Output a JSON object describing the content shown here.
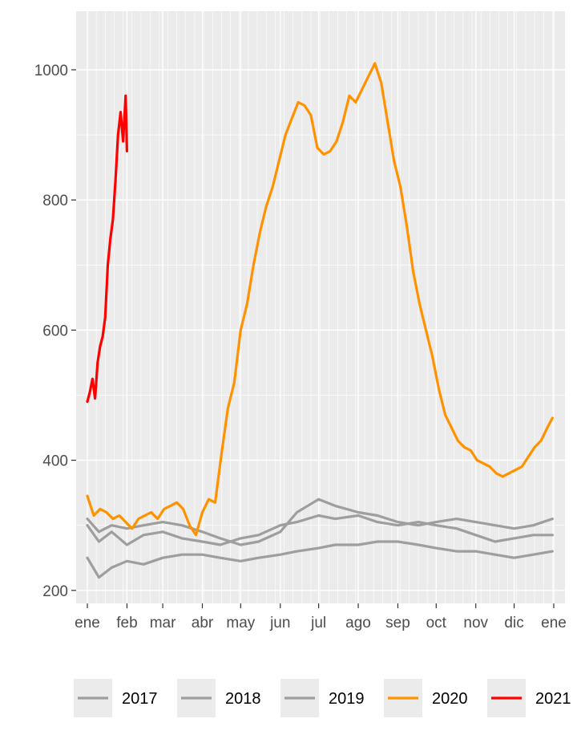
{
  "chart_data": {
    "type": "line",
    "title": "",
    "xlabel": "",
    "ylabel": "",
    "ylim": [
      180,
      1090
    ],
    "y_ticks": [
      200,
      400,
      600,
      800,
      1000
    ],
    "x_ticks": [
      {
        "label": "ene",
        "doy": 1
      },
      {
        "label": "feb",
        "doy": 32
      },
      {
        "label": "mar",
        "doy": 60
      },
      {
        "label": "abr",
        "doy": 91
      },
      {
        "label": "may",
        "doy": 121
      },
      {
        "label": "jun",
        "doy": 152
      },
      {
        "label": "jul",
        "doy": 182
      },
      {
        "label": "ago",
        "doy": 213
      },
      {
        "label": "sep",
        "doy": 244
      },
      {
        "label": "oct",
        "doy": 274
      },
      {
        "label": "nov",
        "doy": 305
      },
      {
        "label": "dic",
        "doy": 335
      },
      {
        "label": "ene",
        "doy": 366
      }
    ],
    "grid": true,
    "legend_position": "bottom",
    "series": [
      {
        "name": "2017",
        "color": "#9e9e9e",
        "x": [
          1,
          10,
          20,
          32,
          45,
          60,
          75,
          91,
          105,
          121,
          135,
          152,
          165,
          182,
          195,
          213,
          228,
          244,
          260,
          274,
          290,
          305,
          320,
          335,
          350,
          365
        ],
        "y": [
          300,
          275,
          290,
          270,
          285,
          290,
          280,
          275,
          270,
          280,
          285,
          300,
          305,
          315,
          310,
          315,
          305,
          300,
          305,
          300,
          295,
          285,
          275,
          280,
          285,
          285
        ]
      },
      {
        "name": "2018",
        "color": "#9e9e9e",
        "x": [
          1,
          10,
          20,
          32,
          45,
          60,
          75,
          91,
          105,
          121,
          135,
          152,
          165,
          182,
          195,
          213,
          228,
          244,
          260,
          274,
          290,
          305,
          320,
          335,
          350,
          365
        ],
        "y": [
          250,
          220,
          235,
          245,
          240,
          250,
          255,
          255,
          250,
          245,
          250,
          255,
          260,
          265,
          270,
          270,
          275,
          275,
          270,
          265,
          260,
          260,
          255,
          250,
          255,
          260
        ]
      },
      {
        "name": "2019",
        "color": "#9e9e9e",
        "x": [
          1,
          10,
          20,
          32,
          45,
          60,
          75,
          91,
          105,
          121,
          135,
          152,
          165,
          182,
          195,
          213,
          228,
          244,
          260,
          274,
          290,
          305,
          320,
          335,
          350,
          365
        ],
        "y": [
          310,
          290,
          300,
          295,
          300,
          305,
          300,
          290,
          280,
          270,
          275,
          290,
          320,
          340,
          330,
          320,
          315,
          305,
          300,
          305,
          310,
          305,
          300,
          295,
          300,
          310
        ]
      },
      {
        "name": "2020",
        "color": "#ff9200",
        "x": [
          1,
          6,
          11,
          16,
          21,
          26,
          31,
          36,
          41,
          46,
          51,
          56,
          61,
          66,
          71,
          76,
          81,
          86,
          91,
          96,
          101,
          106,
          111,
          116,
          121,
          126,
          131,
          136,
          141,
          146,
          151,
          156,
          161,
          166,
          171,
          176,
          181,
          186,
          191,
          196,
          201,
          206,
          211,
          216,
          221,
          226,
          231,
          236,
          241,
          246,
          251,
          256,
          261,
          266,
          271,
          276,
          281,
          286,
          291,
          296,
          301,
          306,
          311,
          316,
          321,
          326,
          331,
          336,
          341,
          346,
          351,
          356,
          361,
          365
        ],
        "y": [
          345,
          315,
          325,
          320,
          310,
          315,
          305,
          295,
          310,
          315,
          320,
          310,
          325,
          330,
          335,
          325,
          300,
          285,
          320,
          340,
          335,
          410,
          480,
          520,
          600,
          640,
          700,
          750,
          790,
          820,
          860,
          900,
          925,
          950,
          945,
          930,
          880,
          870,
          875,
          890,
          920,
          960,
          950,
          970,
          990,
          1010,
          980,
          920,
          860,
          820,
          760,
          690,
          640,
          600,
          560,
          510,
          470,
          450,
          430,
          420,
          415,
          400,
          395,
          390,
          380,
          375,
          380,
          385,
          390,
          405,
          420,
          430,
          450,
          465
        ]
      },
      {
        "name": "2021",
        "color": "#ff0000",
        "x": [
          1,
          3,
          5,
          7,
          9,
          11,
          13,
          15,
          17,
          19,
          21,
          23,
          25,
          27,
          29,
          31,
          32
        ],
        "y": [
          490,
          505,
          525,
          495,
          550,
          575,
          590,
          620,
          700,
          740,
          770,
          830,
          900,
          935,
          890,
          960,
          875
        ]
      }
    ]
  }
}
